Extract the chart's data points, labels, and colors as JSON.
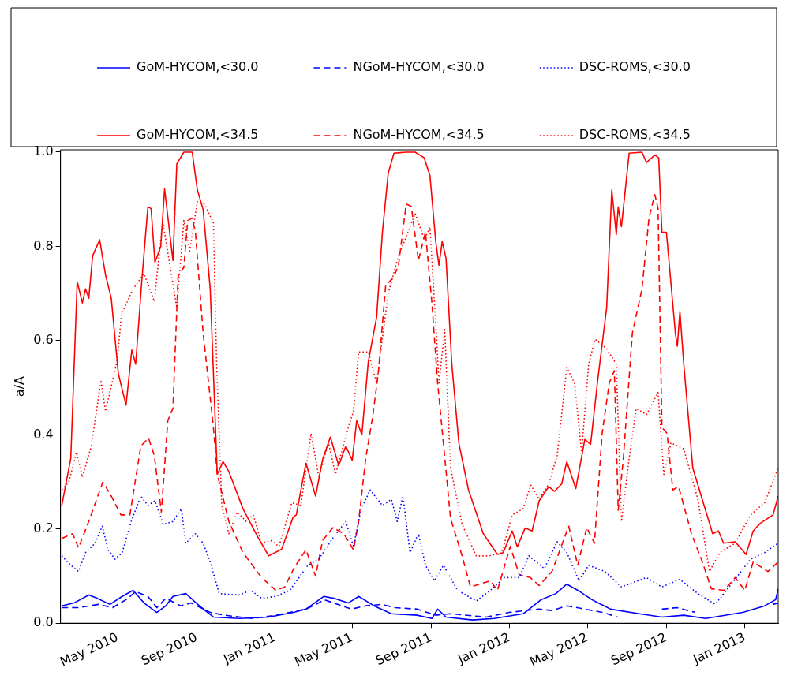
{
  "chart_data": {
    "type": "line",
    "ylabel": "a/A",
    "legend": "top",
    "grid": false,
    "marker": "none",
    "xlim": [
      "2010-02-01",
      "2013-02-22"
    ],
    "xticks": [
      {
        "value": "2010-05-01",
        "label": "May 2010"
      },
      {
        "value": "2010-09-01",
        "label": "Sep 2010"
      },
      {
        "value": "2011-01-01",
        "label": "Jan 2011"
      },
      {
        "value": "2011-05-01",
        "label": "May 2011"
      },
      {
        "value": "2011-09-01",
        "label": "Sep 2011"
      },
      {
        "value": "2012-01-01",
        "label": "Jan 2012"
      },
      {
        "value": "2012-05-01",
        "label": "May 2012"
      },
      {
        "value": "2012-09-01",
        "label": "Sep 2012"
      },
      {
        "value": "2013-01-01",
        "label": "Jan 2013"
      }
    ],
    "ylim": [
      0,
      1.005
    ],
    "yticks": [
      {
        "value": 0,
        "label": "0.0"
      },
      {
        "value": 0.2,
        "label": "0.2"
      },
      {
        "value": 0.4,
        "label": "0.4"
      },
      {
        "value": 0.6,
        "label": "0.6"
      },
      {
        "value": 0.8,
        "label": "0.8"
      },
      {
        "value": 1,
        "label": "1.0"
      }
    ],
    "series": [
      {
        "name": "GoM-HYCOM,<30.0",
        "color": "#0000ff",
        "line_style": "solid",
        "x": [
          "2010-02-03",
          "2010-02-22",
          "2010-03-17",
          "2010-03-30",
          "2010-04-19",
          "2010-05-08",
          "2010-05-25",
          "2010-06-11",
          "2010-07-01",
          "2010-07-15",
          "2010-07-26",
          "2010-08-15",
          "2010-09-05",
          "2010-09-27",
          "2010-11-06",
          "2010-12-22",
          "2011-01-30",
          "2011-02-18",
          "2011-03-18",
          "2011-04-02",
          "2011-04-25",
          "2011-05-11",
          "2011-06-04",
          "2011-07-01",
          "2011-08-10",
          "2011-09-02",
          "2011-09-11",
          "2011-09-24",
          "2011-11-04",
          "2011-12-08",
          "2012-01-22",
          "2012-02-19",
          "2012-03-13",
          "2012-03-30",
          "2012-04-16",
          "2012-05-08",
          "2012-06-06",
          "2012-07-21",
          "2012-08-25",
          "2012-09-28",
          "2012-11-01",
          "2012-12-29",
          "2013-02-01",
          "2013-02-18",
          "2013-02-22"
        ],
        "values": [
          0.037,
          0.043,
          0.06,
          0.053,
          0.04,
          0.057,
          0.07,
          0.043,
          0.023,
          0.037,
          0.057,
          0.063,
          0.037,
          0.013,
          0.01,
          0.013,
          0.023,
          0.03,
          0.057,
          0.053,
          0.043,
          0.057,
          0.037,
          0.02,
          0.017,
          0.01,
          0.03,
          0.013,
          0.007,
          0.01,
          0.02,
          0.05,
          0.063,
          0.083,
          0.07,
          0.05,
          0.03,
          0.02,
          0.013,
          0.017,
          0.01,
          0.023,
          0.037,
          0.05,
          0.073
        ]
      },
      {
        "name": "NGoM-HYCOM,<30.0",
        "color": "#0000ff",
        "line_style": "dashed",
        "x": [
          "2010-02-03",
          "2010-03-01",
          "2010-04-01",
          "2010-04-23",
          "2010-05-14",
          "2010-05-29",
          "2010-06-17",
          "2010-07-01",
          "2010-07-15",
          "2010-08-07",
          "2010-08-23",
          "2010-09-22",
          "2010-10-14",
          "2010-11-28",
          "2011-01-02",
          "2011-02-18",
          "2011-03-10",
          "2011-03-18",
          "2011-04-30",
          "2011-05-22",
          "2011-06-15",
          "2011-07-07",
          "2011-08-10",
          "2011-09-08",
          "2011-10-01",
          "2011-11-26",
          "2011-12-31",
          "2012-02-16",
          "2012-03-07",
          "2012-03-30",
          "2012-04-27",
          "2012-05-25",
          "2012-06-17",
          "2012-07-10",
          "2012-08-25",
          "2012-09-17",
          "2012-10-16",
          "2012-12-01",
          "2013-02-14",
          "2013-02-22"
        ],
        "values": [
          0.033,
          0.033,
          0.04,
          0.033,
          0.05,
          0.067,
          0.057,
          0.033,
          0.053,
          0.037,
          0.043,
          0.023,
          0.017,
          0.01,
          0.017,
          0.03,
          0.043,
          0.05,
          0.03,
          0.037,
          0.04,
          0.033,
          0.03,
          0.017,
          0.02,
          0.013,
          0.023,
          0.03,
          0.027,
          0.037,
          0.03,
          0.023,
          0.013,
          null,
          0.03,
          0.033,
          0.023,
          null,
          0.04,
          0.043
        ]
      },
      {
        "name": "DSC-ROMS,<30.0",
        "color": "#0000ff",
        "line_style": "dotted",
        "x": [
          "2010-02-03",
          "2010-02-17",
          "2010-03-01",
          "2010-03-12",
          "2010-03-27",
          "2010-04-07",
          "2010-04-16",
          "2010-04-27",
          "2010-05-08",
          "2010-05-22",
          "2010-06-06",
          "2010-06-17",
          "2010-06-28",
          "2010-07-11",
          "2010-07-26",
          "2010-08-08",
          "2010-08-15",
          "2010-08-30",
          "2010-09-11",
          "2010-09-22",
          "2010-10-06",
          "2010-11-06",
          "2010-11-24",
          "2010-12-11",
          "2011-01-02",
          "2011-01-24",
          "2011-02-21",
          "2011-03-10",
          "2011-04-02",
          "2011-04-21",
          "2011-05-03",
          "2011-05-15",
          "2011-05-29",
          "2011-06-17",
          "2011-07-01",
          "2011-07-10",
          "2011-07-19",
          "2011-07-30",
          "2011-08-12",
          "2011-08-23",
          "2011-09-06",
          "2011-09-20",
          "2011-10-12",
          "2011-11-10",
          "2011-12-02",
          "2011-12-24",
          "2012-01-16",
          "2012-01-31",
          "2012-02-24",
          "2012-03-15",
          "2012-03-30",
          "2012-04-18",
          "2012-05-03",
          "2012-05-28",
          "2012-06-23",
          "2012-08-01",
          "2012-08-25",
          "2012-09-22",
          "2012-10-20",
          "2012-11-16",
          "2012-12-11",
          "2013-01-10",
          "2013-02-01",
          "2013-02-22"
        ],
        "values": [
          0.143,
          0.123,
          0.11,
          0.15,
          0.17,
          0.206,
          0.156,
          0.136,
          0.15,
          0.216,
          0.27,
          0.25,
          0.26,
          0.21,
          0.216,
          0.243,
          0.17,
          0.19,
          0.17,
          0.13,
          0.063,
          0.06,
          0.07,
          0.053,
          0.057,
          0.07,
          0.123,
          0.136,
          0.183,
          0.216,
          0.163,
          0.243,
          0.283,
          0.25,
          0.263,
          0.216,
          0.27,
          0.15,
          0.19,
          0.123,
          0.09,
          0.123,
          0.07,
          0.047,
          0.07,
          0.097,
          0.097,
          0.143,
          0.116,
          0.173,
          0.15,
          0.09,
          0.123,
          0.11,
          0.077,
          0.097,
          0.077,
          0.093,
          0.063,
          0.04,
          0.083,
          0.136,
          0.15,
          0.17
        ]
      },
      {
        "name": "GoM-HYCOM,<34.5",
        "color": "#ff0000",
        "line_style": "solid",
        "x": [
          "2010-02-03",
          "2010-02-17",
          "2010-02-27",
          "2010-03-07",
          "2010-03-12",
          "2010-03-17",
          "2010-03-23",
          "2010-04-03",
          "2010-04-12",
          "2010-04-21",
          "2010-05-02",
          "2010-05-14",
          "2010-05-23",
          "2010-05-29",
          "2010-06-08",
          "2010-06-17",
          "2010-06-22",
          "2010-06-28",
          "2010-07-07",
          "2010-07-13",
          "2010-07-26",
          "2010-08-01",
          "2010-08-12",
          "2010-08-25",
          "2010-09-02",
          "2010-09-11",
          "2010-09-22",
          "2010-10-03",
          "2010-10-12",
          "2010-10-21",
          "2010-11-12",
          "2010-12-05",
          "2010-12-22",
          "2011-01-11",
          "2011-01-18",
          "2011-01-29",
          "2011-02-03",
          "2011-02-18",
          "2011-03-05",
          "2011-03-16",
          "2011-03-28",
          "2011-04-10",
          "2011-04-21",
          "2011-05-01",
          "2011-05-08",
          "2011-05-16",
          "2011-05-26",
          "2011-06-08",
          "2011-06-17",
          "2011-06-26",
          "2011-07-05",
          "2011-07-24",
          "2011-08-07",
          "2011-08-21",
          "2011-08-30",
          "2011-09-08",
          "2011-09-13",
          "2011-09-18",
          "2011-09-24",
          "2011-10-03",
          "2011-10-14",
          "2011-10-29",
          "2011-11-21",
          "2011-12-13",
          "2011-12-22",
          "2012-01-05",
          "2012-01-13",
          "2012-01-25",
          "2012-02-05",
          "2012-02-16",
          "2012-03-02",
          "2012-03-11",
          "2012-03-22",
          "2012-03-30",
          "2012-04-13",
          "2012-04-27",
          "2012-05-06",
          "2012-05-17",
          "2012-05-31",
          "2012-06-08",
          "2012-06-15",
          "2012-06-18",
          "2012-06-23",
          "2012-07-05",
          "2012-07-25",
          "2012-08-01",
          "2012-08-14",
          "2012-08-20",
          "2012-08-25",
          "2012-09-01",
          "2012-09-15",
          "2012-09-18",
          "2012-09-22",
          "2012-09-28",
          "2012-10-12",
          "2012-10-27",
          "2012-11-12",
          "2012-11-21",
          "2012-11-29",
          "2012-12-17",
          "2013-01-03",
          "2013-01-14",
          "2013-01-25",
          "2013-02-14",
          "2013-02-22"
        ],
        "values": [
          0.25,
          0.35,
          0.725,
          0.68,
          0.71,
          0.69,
          0.78,
          0.814,
          0.74,
          0.69,
          0.53,
          0.463,
          0.58,
          0.55,
          0.735,
          0.884,
          0.88,
          0.766,
          0.8,
          0.922,
          0.77,
          0.975,
          1.0,
          1.0,
          0.92,
          0.878,
          0.71,
          0.316,
          0.343,
          0.322,
          0.243,
          0.183,
          0.143,
          0.157,
          0.183,
          0.225,
          0.23,
          0.34,
          0.27,
          0.348,
          0.395,
          0.335,
          0.376,
          0.346,
          0.43,
          0.4,
          0.555,
          0.65,
          0.83,
          0.955,
          0.998,
          1.0,
          1.0,
          0.988,
          0.95,
          0.81,
          0.76,
          0.81,
          0.775,
          0.55,
          0.382,
          0.283,
          0.19,
          0.146,
          0.15,
          0.196,
          0.162,
          0.202,
          0.196,
          0.26,
          0.29,
          0.28,
          0.296,
          0.343,
          0.286,
          0.39,
          0.38,
          0.515,
          0.67,
          0.92,
          0.825,
          0.884,
          0.842,
          0.998,
          1.0,
          0.978,
          0.994,
          0.988,
          0.83,
          0.83,
          0.615,
          0.588,
          0.662,
          0.55,
          0.33,
          0.262,
          0.19,
          0.196,
          0.17,
          0.173,
          0.146,
          0.196,
          0.212,
          0.23,
          0.27
        ]
      },
      {
        "name": "NGoM-HYCOM,<34.5",
        "color": "#ff0000",
        "line_style": "dashed",
        "x": [
          "2010-02-03",
          "2010-02-20",
          "2010-03-01",
          "2010-03-18",
          "2010-04-08",
          "2010-04-21",
          "2010-05-06",
          "2010-05-20",
          "2010-06-06",
          "2010-06-18",
          "2010-06-27",
          "2010-07-08",
          "2010-07-18",
          "2010-07-26",
          "2010-08-03",
          "2010-08-12",
          "2010-08-18",
          "2010-08-25",
          "2010-08-30",
          "2010-09-11",
          "2010-09-27",
          "2010-10-03",
          "2010-10-21",
          "2010-11-12",
          "2010-12-11",
          "2011-01-02",
          "2011-01-16",
          "2011-01-30",
          "2011-02-18",
          "2011-03-05",
          "2011-03-16",
          "2011-04-01",
          "2011-04-18",
          "2011-05-03",
          "2011-05-11",
          "2011-05-22",
          "2011-06-02",
          "2011-06-11",
          "2011-06-22",
          "2011-07-05",
          "2011-07-12",
          "2011-07-24",
          "2011-08-01",
          "2011-08-12",
          "2011-08-23",
          "2011-09-02",
          "2011-09-11",
          "2011-10-01",
          "2011-10-19",
          "2011-11-01",
          "2011-11-15",
          "2011-12-02",
          "2011-12-13",
          "2012-01-02",
          "2012-01-16",
          "2012-02-02",
          "2012-02-16",
          "2012-03-07",
          "2012-04-02",
          "2012-04-16",
          "2012-04-30",
          "2012-05-12",
          "2012-05-24",
          "2012-06-04",
          "2012-06-12",
          "2012-06-18",
          "2012-06-26",
          "2012-07-10",
          "2012-07-25",
          "2012-08-05",
          "2012-08-14",
          "2012-08-19",
          "2012-08-25",
          "2012-09-02",
          "2012-09-11",
          "2012-09-20",
          "2012-10-10",
          "2012-10-27",
          "2012-11-10",
          "2012-11-30",
          "2012-12-17",
          "2013-01-01",
          "2013-01-14",
          "2013-02-06",
          "2013-02-22"
        ],
        "values": [
          0.18,
          0.19,
          0.16,
          0.22,
          0.3,
          0.27,
          0.23,
          0.23,
          0.376,
          0.393,
          0.356,
          0.236,
          0.43,
          0.456,
          0.736,
          0.756,
          0.855,
          0.86,
          0.83,
          0.616,
          0.416,
          0.316,
          0.216,
          0.15,
          0.097,
          0.07,
          0.077,
          0.116,
          0.156,
          0.1,
          0.176,
          0.203,
          0.19,
          0.156,
          0.216,
          0.35,
          0.44,
          0.536,
          0.716,
          0.736,
          0.76,
          0.89,
          0.885,
          0.77,
          0.83,
          0.68,
          0.51,
          0.223,
          0.143,
          0.077,
          0.083,
          0.09,
          0.07,
          0.163,
          0.103,
          0.097,
          0.08,
          0.11,
          0.206,
          0.123,
          0.203,
          0.17,
          0.403,
          0.51,
          0.536,
          0.24,
          0.35,
          0.616,
          0.71,
          0.862,
          0.91,
          0.88,
          0.416,
          0.403,
          0.283,
          0.29,
          0.19,
          0.13,
          0.073,
          0.07,
          0.097,
          0.07,
          0.13,
          0.11,
          0.13
        ]
      },
      {
        "name": "DSC-ROMS,<34.5",
        "color": "#ff0000",
        "line_style": "dotted",
        "x": [
          "2010-02-03",
          "2010-02-14",
          "2010-02-26",
          "2010-03-07",
          "2010-03-21",
          "2010-04-05",
          "2010-04-12",
          "2010-04-30",
          "2010-05-07",
          "2010-05-25",
          "2010-06-11",
          "2010-06-27",
          "2010-07-10",
          "2010-07-21",
          "2010-08-01",
          "2010-08-12",
          "2010-08-21",
          "2010-09-02",
          "2010-09-13",
          "2010-09-27",
          "2010-10-02",
          "2010-10-10",
          "2010-10-21",
          "2010-11-03",
          "2010-11-17",
          "2010-11-28",
          "2010-12-11",
          "2010-12-25",
          "2011-01-07",
          "2011-01-27",
          "2011-02-10",
          "2011-02-26",
          "2011-03-10",
          "2011-03-25",
          "2011-04-05",
          "2011-04-25",
          "2011-05-03",
          "2011-05-11",
          "2011-05-26",
          "2011-06-08",
          "2011-06-26",
          "2011-07-12",
          "2011-07-24",
          "2011-08-07",
          "2011-08-21",
          "2011-08-30",
          "2011-09-08",
          "2011-09-13",
          "2011-09-22",
          "2011-10-01",
          "2011-10-19",
          "2011-11-10",
          "2011-11-30",
          "2011-12-20",
          "2012-01-05",
          "2012-01-22",
          "2012-02-03",
          "2012-02-16",
          "2012-03-02",
          "2012-03-15",
          "2012-03-30",
          "2012-04-11",
          "2012-04-22",
          "2012-05-03",
          "2012-05-13",
          "2012-05-31",
          "2012-06-15",
          "2012-06-23",
          "2012-07-05",
          "2012-07-16",
          "2012-08-01",
          "2012-08-19",
          "2012-08-28",
          "2012-09-08",
          "2012-09-28",
          "2012-10-20",
          "2012-11-07",
          "2012-11-23",
          "2012-12-17",
          "2013-01-10",
          "2013-02-01",
          "2013-02-22"
        ],
        "values": [
          0.283,
          0.3,
          0.363,
          0.31,
          0.376,
          0.516,
          0.45,
          0.556,
          0.656,
          0.71,
          0.742,
          0.683,
          0.855,
          0.762,
          0.67,
          0.855,
          0.79,
          0.895,
          0.89,
          0.85,
          0.55,
          0.25,
          0.19,
          0.236,
          0.216,
          0.23,
          0.17,
          0.176,
          0.163,
          0.256,
          0.25,
          0.403,
          0.31,
          0.383,
          0.316,
          0.416,
          0.45,
          0.576,
          0.576,
          0.51,
          0.7,
          0.78,
          0.82,
          0.87,
          0.815,
          0.84,
          0.636,
          0.51,
          0.623,
          0.33,
          0.21,
          0.143,
          0.143,
          0.15,
          0.23,
          0.243,
          0.293,
          0.263,
          0.296,
          0.356,
          0.543,
          0.51,
          0.363,
          0.55,
          0.603,
          0.583,
          0.55,
          0.216,
          0.35,
          0.456,
          0.443,
          0.49,
          0.316,
          0.383,
          0.37,
          0.263,
          0.11,
          0.15,
          0.17,
          0.23,
          0.256,
          0.33
        ]
      }
    ]
  }
}
